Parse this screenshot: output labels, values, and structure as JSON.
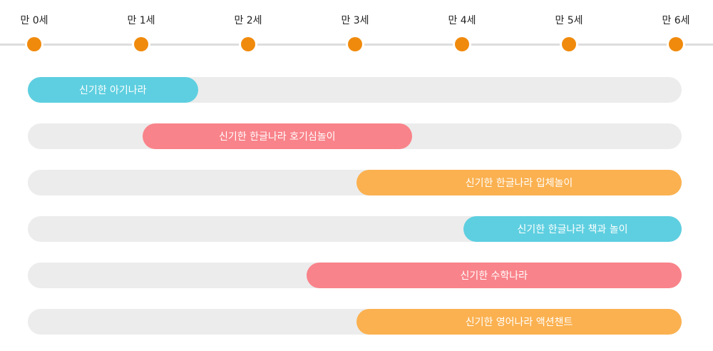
{
  "ages": [
    "만 0세",
    "만 1세",
    "만 2세",
    "만 3세",
    "만 4세",
    "만 5세",
    "만 6세"
  ],
  "colors": {
    "teal": "#5ecfe0",
    "pink": "#f9838a",
    "orange": "#fbb150",
    "dot": "#f08a0c",
    "track": "#ececec"
  },
  "programs": [
    {
      "label": "신기한 아기나라",
      "start_age": 0,
      "end_age": 1.53,
      "color": "teal"
    },
    {
      "label": "신기한 한글나라 호기심놀이",
      "start_age": 1.0,
      "end_age": 3.53,
      "color": "pink"
    },
    {
      "label": "신기한 한글나라 입체놀이",
      "start_age": 3.0,
      "end_age": 6,
      "color": "orange"
    },
    {
      "label": "신기한 한글나라 책과 놀이",
      "start_age": 4.0,
      "end_age": 6,
      "color": "teal"
    },
    {
      "label": "신기한 수학나라",
      "start_age": 2.53,
      "end_age": 6,
      "color": "pink"
    },
    {
      "label": "신기한 영어나라 액션챈트",
      "start_age": 3.0,
      "end_age": 6,
      "color": "orange"
    }
  ]
}
